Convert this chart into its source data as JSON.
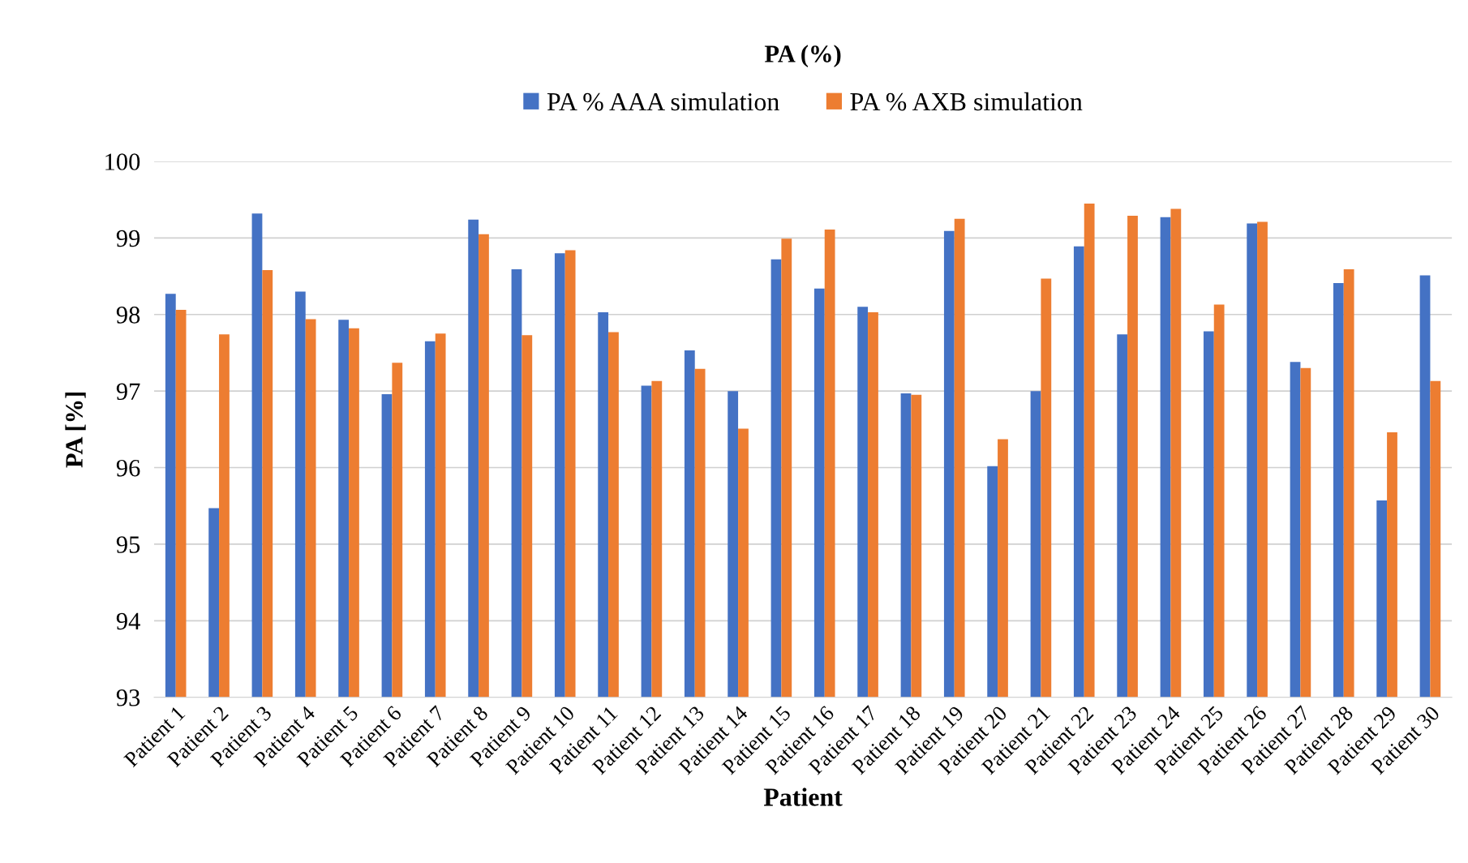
{
  "chart_data": {
    "type": "bar",
    "title": "PA (%)",
    "xlabel": "Patient",
    "ylabel": "PA [%]",
    "categories": [
      "Patient 1",
      "Patient 2",
      "Patient 3",
      "Patient 4",
      "Patient 5",
      "Patient 6",
      "Patient 7",
      "Patient 8",
      "Patient 9",
      "Patient 10",
      "Patient 11",
      "Patient 12",
      "Patient 13",
      "Patient 14",
      "Patient 15",
      "Patient 16",
      "Patient 17",
      "Patient 18",
      "Patient 19",
      "Patient 20",
      "Patient 21",
      "Patient 22",
      "Patient 23",
      "Patient 24",
      "Patient 25",
      "Patient 26",
      "Patient 27",
      "Patient 28",
      "Patient 29",
      "Patient 30"
    ],
    "series": [
      {
        "name": "PA % AAA simulation",
        "color": "#4472c4",
        "values": [
          98.27,
          95.47,
          99.32,
          98.3,
          97.93,
          96.96,
          97.65,
          99.24,
          98.59,
          98.8,
          98.03,
          97.07,
          97.53,
          97.0,
          98.72,
          98.34,
          98.1,
          96.97,
          99.09,
          96.02,
          97.0,
          98.89,
          97.74,
          99.27,
          97.78,
          99.19,
          97.38,
          98.41,
          95.57,
          98.51
        ]
      },
      {
        "name": "PA % AXB simulation",
        "color": "#ed7d31",
        "values": [
          98.06,
          97.74,
          98.58,
          97.94,
          97.82,
          97.37,
          97.75,
          99.05,
          97.73,
          98.84,
          97.77,
          97.13,
          97.29,
          96.51,
          98.99,
          99.11,
          98.03,
          96.95,
          99.25,
          96.37,
          98.47,
          99.45,
          99.29,
          99.38,
          98.13,
          99.21,
          97.3,
          98.59,
          96.46,
          97.13
        ]
      }
    ],
    "ylim": [
      93,
      100
    ],
    "yticks": [
      93,
      94,
      95,
      96,
      97,
      98,
      99,
      100
    ],
    "grid": "y",
    "legend": "top"
  }
}
